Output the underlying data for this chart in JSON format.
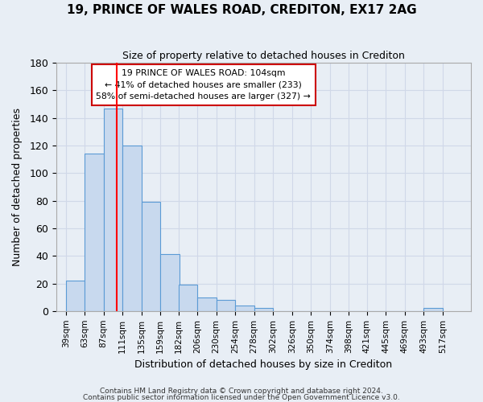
{
  "title": "19, PRINCE OF WALES ROAD, CREDITON, EX17 2AG",
  "subtitle": "Size of property relative to detached houses in Crediton",
  "xlabel": "Distribution of detached houses by size in Crediton",
  "ylabel": "Number of detached properties",
  "bar_left_edges": [
    39,
    63,
    87,
    111,
    135,
    159,
    182,
    206,
    230,
    254,
    278,
    302,
    326,
    350,
    374,
    398,
    421,
    445,
    469,
    493
  ],
  "bar_heights": [
    22,
    114,
    147,
    120,
    79,
    41,
    19,
    10,
    8,
    4,
    2,
    0,
    0,
    0,
    0,
    0,
    0,
    0,
    0,
    2
  ],
  "bin_width": 24,
  "xtick_labels": [
    "39sqm",
    "63sqm",
    "87sqm",
    "111sqm",
    "135sqm",
    "159sqm",
    "182sqm",
    "206sqm",
    "230sqm",
    "254sqm",
    "278sqm",
    "302sqm",
    "326sqm",
    "350sqm",
    "374sqm",
    "398sqm",
    "421sqm",
    "445sqm",
    "469sqm",
    "493sqm",
    "517sqm"
  ],
  "xtick_positions": [
    39,
    63,
    87,
    111,
    135,
    159,
    182,
    206,
    230,
    254,
    278,
    302,
    326,
    350,
    374,
    398,
    421,
    445,
    469,
    493,
    517
  ],
  "ylim": [
    0,
    180
  ],
  "yticks": [
    0,
    20,
    40,
    60,
    80,
    100,
    120,
    140,
    160,
    180
  ],
  "bar_color": "#c8d9ee",
  "bar_edge_color": "#5b9bd5",
  "grid_color": "#d0d8e8",
  "bg_color": "#e8eef5",
  "red_line_x": 104,
  "annotation_title": "19 PRINCE OF WALES ROAD: 104sqm",
  "annotation_line1": "← 41% of detached houses are smaller (233)",
  "annotation_line2": "58% of semi-detached houses are larger (327) →",
  "annotation_box_color": "#ffffff",
  "annotation_box_edge": "#cc0000",
  "footnote1": "Contains HM Land Registry data © Crown copyright and database right 2024.",
  "footnote2": "Contains public sector information licensed under the Open Government Licence v3.0."
}
